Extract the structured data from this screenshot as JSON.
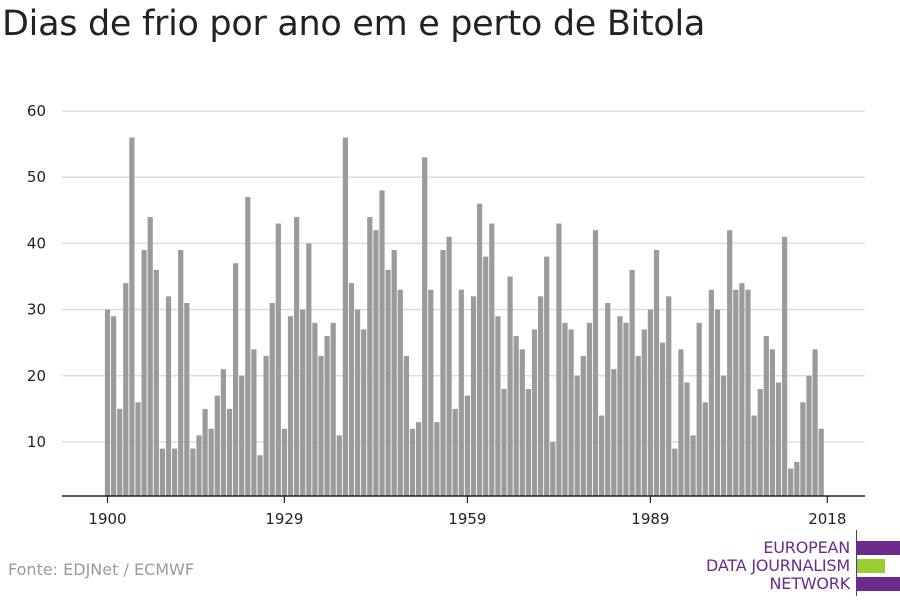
{
  "title": "Dias de frio por ano em e perto de Bitola",
  "source": "Fonte: EDJNet / ECMWF",
  "logo": {
    "line1": "EUROPEAN",
    "line2": "DATA JOURNALISM",
    "line3": "NETWORK",
    "colors": [
      "#6b2a8c",
      "#9acd32",
      "#6b2a8c"
    ]
  },
  "colors": {
    "bar": "#9b9b9b",
    "grid": "#dddddd",
    "axis": "#222222",
    "text": "#222222"
  },
  "chart_data": {
    "type": "bar",
    "title": "Dias de frio por ano em e perto de Bitola",
    "xlabel": "",
    "ylabel": "",
    "ylim": [
      0,
      60
    ],
    "yticks": [
      10,
      20,
      30,
      40,
      50,
      60
    ],
    "xticks": [
      1900,
      1929,
      1959,
      1989,
      2018
    ],
    "grid": true,
    "x_start": 1900,
    "x_end": 2021,
    "values": [
      30,
      29,
      15,
      34,
      56,
      16,
      39,
      44,
      36,
      9,
      32,
      9,
      39,
      31,
      9,
      11,
      15,
      12,
      17,
      21,
      15,
      37,
      20,
      47,
      24,
      8,
      23,
      31,
      43,
      12,
      29,
      44,
      30,
      40,
      28,
      23,
      26,
      28,
      11,
      56,
      34,
      30,
      27,
      44,
      42,
      48,
      36,
      39,
      33,
      23,
      12,
      13,
      53,
      33,
      13,
      39,
      41,
      15,
      33,
      17,
      32,
      46,
      38,
      43,
      29,
      18,
      35,
      26,
      24,
      18,
      27,
      32,
      38,
      10,
      43,
      28,
      27,
      20,
      23,
      28,
      42,
      14,
      31,
      21,
      29,
      28,
      36,
      23,
      27,
      30,
      39,
      25,
      32,
      9,
      24,
      19,
      11,
      28,
      16,
      33,
      30,
      20,
      42,
      33,
      34,
      33,
      14,
      18,
      26,
      24,
      19,
      41,
      6,
      7,
      16,
      20,
      24,
      12
    ]
  }
}
